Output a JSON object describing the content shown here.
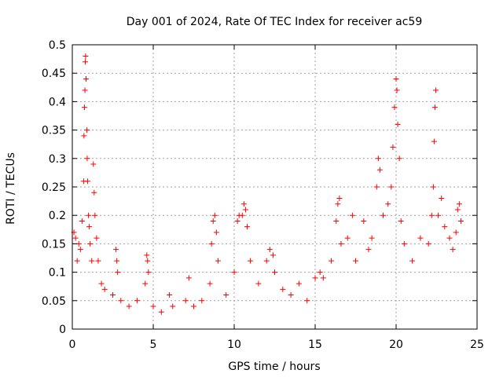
{
  "chart_data": {
    "type": "scatter",
    "title": "Day 001 of 2024, Rate Of TEC Index for receiver ac59",
    "xlabel": "GPS time / hours",
    "ylabel": "ROTI / TECUs",
    "xlim": [
      0,
      25
    ],
    "ylim": [
      0,
      0.5
    ],
    "xticks": [
      0,
      5,
      10,
      15,
      20,
      25
    ],
    "yticks": [
      0,
      0.05,
      0.1,
      0.15,
      0.2,
      0.25,
      0.3,
      0.35,
      0.4,
      0.45,
      0.5
    ],
    "xtick_labels": [
      "0",
      "5",
      "10",
      "15",
      "20",
      "25"
    ],
    "ytick_labels": [
      "0",
      "0.05",
      "0.1",
      "0.15",
      "0.2",
      "0.25",
      "0.3",
      "0.35",
      "0.4",
      "0.45",
      "0.5"
    ],
    "grid": true,
    "marker": "+",
    "color": "#ff0000",
    "points": [
      [
        0.1,
        0.17
      ],
      [
        0.2,
        0.16
      ],
      [
        0.3,
        0.12
      ],
      [
        0.4,
        0.15
      ],
      [
        0.5,
        0.14
      ],
      [
        0.6,
        0.19
      ],
      [
        0.7,
        0.26
      ],
      [
        0.72,
        0.34
      ],
      [
        0.75,
        0.39
      ],
      [
        0.78,
        0.42
      ],
      [
        0.8,
        0.47
      ],
      [
        0.82,
        0.48
      ],
      [
        0.85,
        0.44
      ],
      [
        0.9,
        0.35
      ],
      [
        0.92,
        0.3
      ],
      [
        0.95,
        0.26
      ],
      [
        1.0,
        0.2
      ],
      [
        1.05,
        0.18
      ],
      [
        1.1,
        0.15
      ],
      [
        1.2,
        0.12
      ],
      [
        1.3,
        0.29
      ],
      [
        1.35,
        0.24
      ],
      [
        1.4,
        0.2
      ],
      [
        1.5,
        0.16
      ],
      [
        1.6,
        0.12
      ],
      [
        1.8,
        0.08
      ],
      [
        2.0,
        0.07
      ],
      [
        2.5,
        0.06
      ],
      [
        2.7,
        0.14
      ],
      [
        2.75,
        0.12
      ],
      [
        2.8,
        0.1
      ],
      [
        3.0,
        0.05
      ],
      [
        3.5,
        0.04
      ],
      [
        4.0,
        0.05
      ],
      [
        4.5,
        0.08
      ],
      [
        4.6,
        0.13
      ],
      [
        4.65,
        0.12
      ],
      [
        4.7,
        0.1
      ],
      [
        5.0,
        0.04
      ],
      [
        5.5,
        0.03
      ],
      [
        6.0,
        0.06
      ],
      [
        6.2,
        0.04
      ],
      [
        7.0,
        0.05
      ],
      [
        7.2,
        0.09
      ],
      [
        7.5,
        0.04
      ],
      [
        8.0,
        0.05
      ],
      [
        8.5,
        0.08
      ],
      [
        8.6,
        0.15
      ],
      [
        8.7,
        0.19
      ],
      [
        8.8,
        0.2
      ],
      [
        8.9,
        0.17
      ],
      [
        9.0,
        0.12
      ],
      [
        9.5,
        0.06
      ],
      [
        10.0,
        0.1
      ],
      [
        10.2,
        0.19
      ],
      [
        10.3,
        0.2
      ],
      [
        10.5,
        0.2
      ],
      [
        10.6,
        0.22
      ],
      [
        10.7,
        0.21
      ],
      [
        10.8,
        0.18
      ],
      [
        11.0,
        0.12
      ],
      [
        11.5,
        0.08
      ],
      [
        12.0,
        0.12
      ],
      [
        12.2,
        0.14
      ],
      [
        12.4,
        0.13
      ],
      [
        12.5,
        0.1
      ],
      [
        13.0,
        0.07
      ],
      [
        13.5,
        0.06
      ],
      [
        14.0,
        0.08
      ],
      [
        14.5,
        0.05
      ],
      [
        15.0,
        0.09
      ],
      [
        15.3,
        0.1
      ],
      [
        15.5,
        0.09
      ],
      [
        16.0,
        0.12
      ],
      [
        16.3,
        0.19
      ],
      [
        16.4,
        0.22
      ],
      [
        16.5,
        0.23
      ],
      [
        16.6,
        0.15
      ],
      [
        17.0,
        0.16
      ],
      [
        17.3,
        0.2
      ],
      [
        17.5,
        0.12
      ],
      [
        18.0,
        0.19
      ],
      [
        18.3,
        0.14
      ],
      [
        18.5,
        0.16
      ],
      [
        18.8,
        0.25
      ],
      [
        18.9,
        0.3
      ],
      [
        19.0,
        0.28
      ],
      [
        19.2,
        0.2
      ],
      [
        19.5,
        0.22
      ],
      [
        19.7,
        0.25
      ],
      [
        19.8,
        0.32
      ],
      [
        19.9,
        0.39
      ],
      [
        20.0,
        0.44
      ],
      [
        20.05,
        0.42
      ],
      [
        20.1,
        0.36
      ],
      [
        20.2,
        0.3
      ],
      [
        20.3,
        0.19
      ],
      [
        20.5,
        0.15
      ],
      [
        21.0,
        0.12
      ],
      [
        21.5,
        0.16
      ],
      [
        22.0,
        0.15
      ],
      [
        22.2,
        0.2
      ],
      [
        22.3,
        0.25
      ],
      [
        22.35,
        0.33
      ],
      [
        22.4,
        0.39
      ],
      [
        22.45,
        0.42
      ],
      [
        22.6,
        0.2
      ],
      [
        22.8,
        0.23
      ],
      [
        23.0,
        0.18
      ],
      [
        23.3,
        0.16
      ],
      [
        23.5,
        0.14
      ],
      [
        23.7,
        0.17
      ],
      [
        23.8,
        0.21
      ],
      [
        23.9,
        0.22
      ],
      [
        24.0,
        0.19
      ]
    ]
  }
}
